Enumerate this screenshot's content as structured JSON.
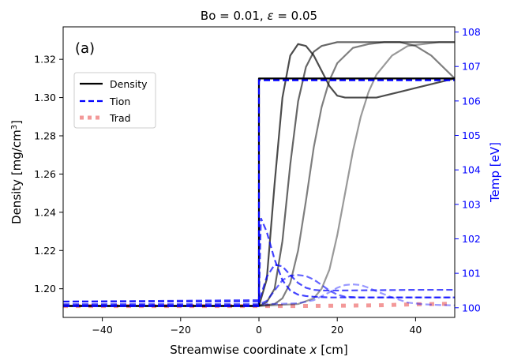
{
  "chart_data": {
    "type": "line",
    "title_prefix": "Bo = 0.01, ",
    "title_symbol": "ε",
    "title_suffix": " = 0.05",
    "panel_label": "(a)",
    "xlabel_prefix": "Streamwise coordinate ",
    "xlabel_symbol": "x",
    "xlabel_suffix": " [cm]",
    "ylabel_left_base": "Density [mg/cm",
    "ylabel_left_sup": "3",
    "ylabel_left_end": "]",
    "ylabel_right": "Temp [eV]",
    "xlim": [
      -50,
      50
    ],
    "ylim_left": [
      1.185,
      1.337
    ],
    "ylim_right": [
      99.72,
      108.15
    ],
    "xticks": [
      -40,
      -20,
      0,
      20,
      40
    ],
    "xtick_labels": [
      "−40",
      "−20",
      "0",
      "20",
      "40"
    ],
    "yticks_left": [
      1.2,
      1.22,
      1.24,
      1.26,
      1.28,
      1.3,
      1.32
    ],
    "ytick_labels_left": [
      "1.20",
      "1.22",
      "1.24",
      "1.26",
      "1.28",
      "1.30",
      "1.32"
    ],
    "yticks_right": [
      100,
      101,
      102,
      103,
      104,
      105,
      106,
      107,
      108
    ],
    "ytick_labels_right": [
      "100",
      "101",
      "102",
      "103",
      "104",
      "105",
      "106",
      "107",
      "108"
    ],
    "legend": [
      {
        "label": "Density",
        "style": "solid",
        "color": "#000000"
      },
      {
        "label": "Tion",
        "style": "dashed",
        "color": "#0000ff"
      },
      {
        "label": "Trad",
        "style": "dotted",
        "color": "#f08080"
      }
    ],
    "density_series": [
      {
        "name": "Density (jump)",
        "opacity": 1.0,
        "x": [
          -50,
          0,
          0,
          50
        ],
        "y": [
          1.191,
          1.191,
          1.31,
          1.31
        ]
      },
      {
        "name": "Density 1",
        "opacity": 0.7,
        "x": [
          -50,
          0,
          2,
          4,
          6,
          8,
          10,
          12,
          14,
          16,
          18,
          20,
          22,
          26,
          30,
          40,
          50
        ],
        "y": [
          1.191,
          1.191,
          1.205,
          1.255,
          1.3,
          1.322,
          1.328,
          1.327,
          1.322,
          1.314,
          1.306,
          1.301,
          1.3,
          1.3,
          1.3,
          1.305,
          1.31
        ]
      },
      {
        "name": "Density 2",
        "opacity": 0.6,
        "x": [
          -50,
          0,
          2,
          4,
          6,
          8,
          10,
          12,
          14,
          16,
          18,
          20,
          24,
          30,
          40,
          50
        ],
        "y": [
          1.191,
          1.191,
          1.193,
          1.2,
          1.225,
          1.265,
          1.298,
          1.316,
          1.324,
          1.327,
          1.328,
          1.329,
          1.329,
          1.329,
          1.329,
          1.329
        ]
      },
      {
        "name": "Density 3",
        "opacity": 0.5,
        "x": [
          -50,
          0,
          4,
          6,
          8,
          10,
          12,
          14,
          16,
          18,
          20,
          24,
          28,
          32,
          36,
          40,
          44,
          50
        ],
        "y": [
          1.191,
          1.191,
          1.192,
          1.195,
          1.203,
          1.22,
          1.246,
          1.274,
          1.295,
          1.309,
          1.318,
          1.326,
          1.328,
          1.329,
          1.329,
          1.327,
          1.322,
          1.31
        ]
      },
      {
        "name": "Density 4",
        "opacity": 0.4,
        "x": [
          -50,
          0,
          10,
          14,
          16,
          18,
          20,
          22,
          24,
          26,
          28,
          30,
          34,
          38,
          42,
          46,
          50
        ],
        "y": [
          1.191,
          1.191,
          1.192,
          1.195,
          1.2,
          1.21,
          1.228,
          1.25,
          1.272,
          1.29,
          1.303,
          1.312,
          1.322,
          1.327,
          1.328,
          1.329,
          1.329
        ]
      }
    ],
    "tion_series": [
      {
        "name": "Tion (jump)",
        "opacity": 1.0,
        "x": [
          -50,
          0,
          0,
          50
        ],
        "y": [
          100.05,
          100.05,
          106.6,
          106.6
        ]
      },
      {
        "name": "Tion 1",
        "opacity": 0.75,
        "x": [
          -50,
          0,
          0.5,
          2,
          4,
          6,
          8,
          10,
          12,
          14,
          16,
          18,
          20,
          30,
          40,
          50
        ],
        "y": [
          100.18,
          100.22,
          102.6,
          102.2,
          101.4,
          100.8,
          100.5,
          100.38,
          100.34,
          100.32,
          100.31,
          100.3,
          100.3,
          100.3,
          100.3,
          100.3
        ]
      },
      {
        "name": "Tion 2",
        "opacity": 0.7,
        "x": [
          -50,
          0,
          2,
          4,
          6,
          8,
          10,
          12,
          14,
          16,
          18,
          20,
          30,
          40,
          50
        ],
        "y": [
          100.18,
          100.18,
          100.9,
          101.25,
          101.2,
          100.95,
          100.72,
          100.58,
          100.52,
          100.5,
          100.5,
          100.5,
          100.51,
          100.52,
          100.52
        ]
      },
      {
        "name": "Tion 3",
        "opacity": 0.6,
        "x": [
          -50,
          0,
          2,
          4,
          6,
          8,
          10,
          12,
          14,
          16,
          18,
          20,
          22,
          26,
          30,
          40,
          50
        ],
        "y": [
          100.1,
          100.1,
          100.2,
          100.5,
          100.8,
          100.93,
          100.95,
          100.92,
          100.82,
          100.66,
          100.5,
          100.38,
          100.32,
          100.3,
          100.3,
          100.3,
          100.3
        ]
      },
      {
        "name": "Tion 4",
        "opacity": 0.4,
        "x": [
          -50,
          0,
          10,
          14,
          18,
          20,
          22,
          24,
          26,
          28,
          30,
          34,
          38,
          42,
          46,
          50
        ],
        "y": [
          100.1,
          100.1,
          100.13,
          100.22,
          100.45,
          100.58,
          100.66,
          100.68,
          100.66,
          100.58,
          100.48,
          100.3,
          100.15,
          100.1,
          100.08,
          100.07
        ]
      }
    ],
    "trad_series": [
      {
        "name": "Trad",
        "opacity": 0.8,
        "x": [
          -50,
          -30,
          -10,
          0,
          10,
          20,
          30,
          40,
          50
        ],
        "y": [
          100.05,
          100.05,
          100.05,
          100.05,
          100.05,
          100.06,
          100.07,
          100.1,
          100.12
        ]
      }
    ]
  }
}
